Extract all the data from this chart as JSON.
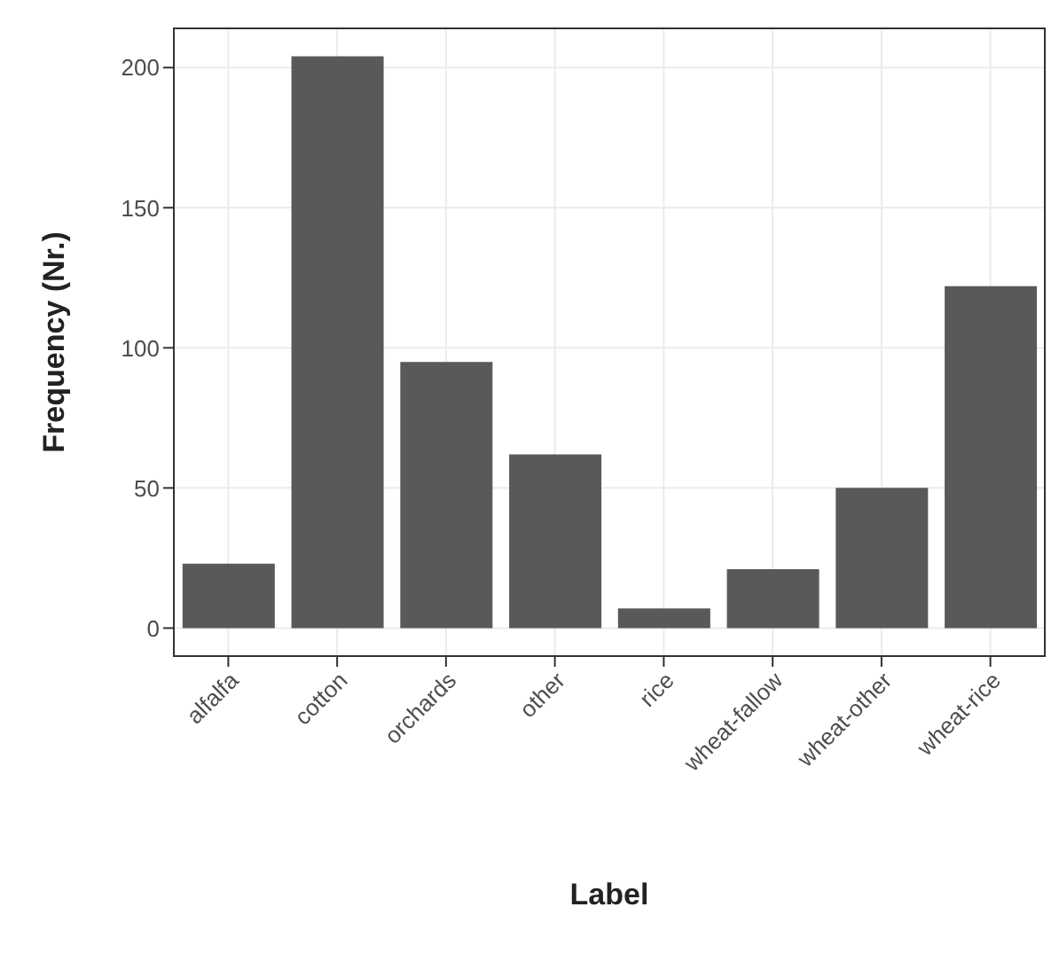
{
  "chart_data": {
    "type": "bar",
    "xlabel": "Label",
    "ylabel": "Frequency (Nr.)",
    "categories": [
      "alfalfa",
      "cotton",
      "orchards",
      "other",
      "rice",
      "wheat-fallow",
      "wheat-other",
      "wheat-rice"
    ],
    "values": [
      23,
      204,
      95,
      62,
      7,
      21,
      50,
      122
    ],
    "color": "#595959",
    "ylim": [
      -10,
      214
    ],
    "yticks": [
      0,
      50,
      100,
      150,
      200
    ],
    "grid": true
  }
}
